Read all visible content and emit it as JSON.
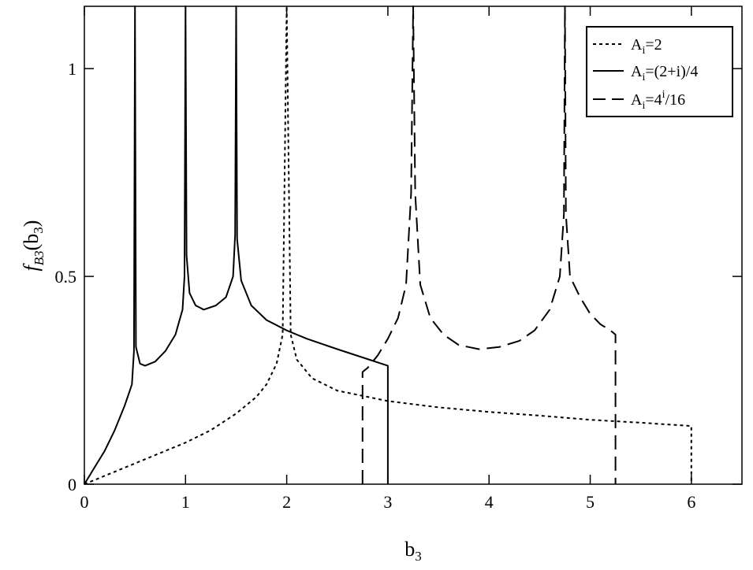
{
  "chart_data": {
    "type": "line",
    "title": "",
    "xlabel_parts": {
      "base": "b",
      "sub": "3"
    },
    "ylabel_parts": {
      "f": "f",
      "fsub": "B3",
      "arg": "(b",
      "argsub": "3",
      "close": ")"
    },
    "xlim": [
      0,
      6.5
    ],
    "ylim": [
      0,
      1.15
    ],
    "xticks": [
      0,
      1,
      2,
      3,
      4,
      5,
      6
    ],
    "yticks": [
      0,
      0.5,
      1
    ],
    "x_tick_labels": [
      "0",
      "1",
      "2",
      "3",
      "4",
      "5",
      "6"
    ],
    "y_tick_labels": [
      "0",
      "0.5",
      "1"
    ],
    "grid": false,
    "legend_position": "top-right",
    "series": [
      {
        "name": "A_i=2",
        "label_parts": {
          "pre": "A",
          "sub": "i",
          "post": "=2"
        },
        "style": "dotted",
        "points": [
          [
            0,
            0
          ],
          [
            0.25,
            0.025
          ],
          [
            0.5,
            0.05
          ],
          [
            0.75,
            0.075
          ],
          [
            1,
            0.1
          ],
          [
            1.25,
            0.13
          ],
          [
            1.5,
            0.17
          ],
          [
            1.7,
            0.21
          ],
          [
            1.8,
            0.24
          ],
          [
            1.9,
            0.29
          ],
          [
            1.96,
            0.36
          ],
          [
            2,
            1.15
          ],
          [
            2.04,
            0.36
          ],
          [
            2.1,
            0.3
          ],
          [
            2.25,
            0.255
          ],
          [
            2.5,
            0.225
          ],
          [
            3,
            0.2
          ],
          [
            3.5,
            0.185
          ],
          [
            4,
            0.174
          ],
          [
            4.5,
            0.165
          ],
          [
            5,
            0.155
          ],
          [
            5.5,
            0.148
          ],
          [
            6,
            0.14
          ],
          [
            6,
            0
          ]
        ]
      },
      {
        "name": "A_i=(2+i)/4",
        "label_parts": {
          "pre": "A",
          "sub": "i",
          "post": "=(2+i)/4"
        },
        "style": "solid",
        "points": [
          [
            0,
            0
          ],
          [
            0.1,
            0.04
          ],
          [
            0.2,
            0.08
          ],
          [
            0.3,
            0.13
          ],
          [
            0.4,
            0.19
          ],
          [
            0.47,
            0.24
          ],
          [
            0.49,
            0.32
          ],
          [
            0.5,
            1.15
          ],
          [
            0.51,
            0.33
          ],
          [
            0.55,
            0.29
          ],
          [
            0.6,
            0.285
          ],
          [
            0.7,
            0.295
          ],
          [
            0.8,
            0.32
          ],
          [
            0.9,
            0.36
          ],
          [
            0.97,
            0.42
          ],
          [
            0.99,
            0.5
          ],
          [
            1,
            1.15
          ],
          [
            1.01,
            0.55
          ],
          [
            1.04,
            0.46
          ],
          [
            1.1,
            0.43
          ],
          [
            1.18,
            0.42
          ],
          [
            1.3,
            0.43
          ],
          [
            1.4,
            0.45
          ],
          [
            1.47,
            0.5
          ],
          [
            1.49,
            0.6
          ],
          [
            1.5,
            1.15
          ],
          [
            1.51,
            0.59
          ],
          [
            1.55,
            0.49
          ],
          [
            1.65,
            0.43
          ],
          [
            1.8,
            0.395
          ],
          [
            2,
            0.37
          ],
          [
            2.2,
            0.35
          ],
          [
            2.5,
            0.325
          ],
          [
            2.75,
            0.305
          ],
          [
            3,
            0.285
          ],
          [
            3,
            0
          ]
        ]
      },
      {
        "name": "A_i=4^i/16",
        "label_parts": {
          "pre": "A",
          "sub": "i",
          "mid": "=4",
          "sup": "i",
          "post": "/16"
        },
        "style": "dashed",
        "points": [
          [
            2.75,
            0
          ],
          [
            2.75,
            0.27
          ],
          [
            2.8,
            0.28
          ],
          [
            2.9,
            0.31
          ],
          [
            3,
            0.35
          ],
          [
            3.1,
            0.4
          ],
          [
            3.18,
            0.48
          ],
          [
            3.23,
            0.7
          ],
          [
            3.25,
            1.15
          ],
          [
            3.27,
            0.7
          ],
          [
            3.32,
            0.48
          ],
          [
            3.42,
            0.4
          ],
          [
            3.55,
            0.36
          ],
          [
            3.7,
            0.335
          ],
          [
            3.9,
            0.325
          ],
          [
            4.1,
            0.33
          ],
          [
            4.3,
            0.345
          ],
          [
            4.45,
            0.37
          ],
          [
            4.6,
            0.42
          ],
          [
            4.7,
            0.5
          ],
          [
            4.74,
            0.65
          ],
          [
            4.75,
            1.15
          ],
          [
            4.76,
            0.65
          ],
          [
            4.8,
            0.5
          ],
          [
            4.9,
            0.45
          ],
          [
            5,
            0.41
          ],
          [
            5.1,
            0.385
          ],
          [
            5.2,
            0.37
          ],
          [
            5.25,
            0.36
          ],
          [
            5.25,
            0
          ]
        ]
      }
    ]
  }
}
